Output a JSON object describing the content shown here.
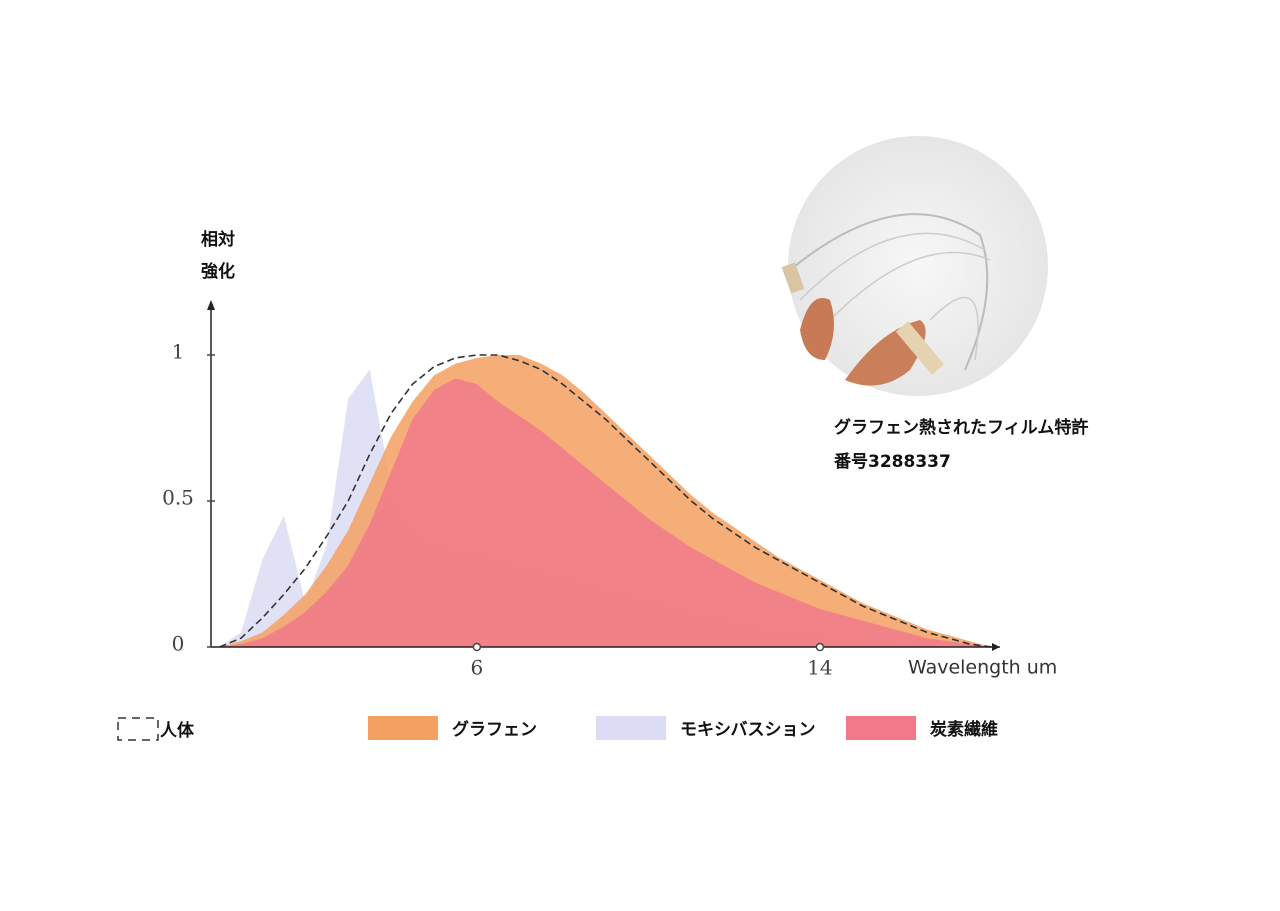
{
  "chart_data": {
    "type": "area",
    "ylabel": [
      "相対",
      "強化"
    ],
    "xlabel": "Wavelength um",
    "annotation": [
      "グラフェン熱されたフィルム特許",
      "番号3288337"
    ],
    "x": [
      0,
      0.5,
      1,
      1.5,
      2,
      2.5,
      3,
      3.5,
      4,
      4.5,
      5,
      5.5,
      6,
      6.5,
      7,
      7.5,
      8,
      8.5,
      9,
      9.5,
      10,
      10.5,
      11,
      11.5,
      12,
      12.5,
      13,
      13.5,
      14,
      14.5,
      15,
      15.5,
      16,
      16.5,
      17,
      17.5,
      18
    ],
    "series": [
      {
        "name": "人体",
        "color": "#333333",
        "line_style": "dashed",
        "values": [
          0,
          0.03,
          0.1,
          0.18,
          0.27,
          0.38,
          0.5,
          0.66,
          0.8,
          0.9,
          0.96,
          0.99,
          1,
          1,
          0.98,
          0.95,
          0.9,
          0.84,
          0.78,
          0.71,
          0.64,
          0.57,
          0.5,
          0.44,
          0.39,
          0.34,
          0.3,
          0.26,
          0.22,
          0.18,
          0.14,
          0.11,
          0.08,
          0.05,
          0.03,
          0.01,
          0
        ]
      },
      {
        "name": "グラフェン",
        "color": "#f4a062",
        "values": [
          0,
          0.02,
          0.05,
          0.11,
          0.18,
          0.28,
          0.4,
          0.56,
          0.72,
          0.84,
          0.93,
          0.97,
          0.99,
          1,
          1,
          0.97,
          0.93,
          0.87,
          0.8,
          0.73,
          0.66,
          0.59,
          0.52,
          0.46,
          0.41,
          0.36,
          0.31,
          0.27,
          0.23,
          0.19,
          0.15,
          0.12,
          0.09,
          0.06,
          0.04,
          0.02,
          0
        ]
      },
      {
        "name": "モキシバスション",
        "color": "#dcdcf5",
        "values": [
          0,
          0.05,
          0.3,
          0.45,
          0.15,
          0.35,
          0.85,
          0.95,
          0.55,
          0.42,
          0.36,
          0.34,
          0.33,
          0.31,
          0.29,
          0.27,
          0.25,
          0.23,
          0.21,
          0.19,
          0.17,
          0.15,
          0.13,
          0.11,
          0.1,
          0.08,
          0.07,
          0.06,
          0.05,
          0.04,
          0.03,
          0.02,
          0.01,
          0,
          0,
          0,
          0
        ]
      },
      {
        "name": "炭素繊維",
        "color": "#f07a8a",
        "values": [
          0,
          0.01,
          0.03,
          0.07,
          0.12,
          0.19,
          0.28,
          0.42,
          0.6,
          0.78,
          0.88,
          0.92,
          0.9,
          0.84,
          0.79,
          0.74,
          0.68,
          0.62,
          0.56,
          0.5,
          0.44,
          0.39,
          0.34,
          0.3,
          0.26,
          0.22,
          0.19,
          0.16,
          0.13,
          0.11,
          0.09,
          0.07,
          0.05,
          0.03,
          0.02,
          0.01,
          0
        ]
      }
    ],
    "xlim": [
      -0.2,
      18.2
    ],
    "xticks": [
      6,
      14
    ],
    "ylim": [
      0,
      1.2
    ],
    "yticks": [
      0,
      0.5,
      1
    ],
    "grid": false
  }
}
